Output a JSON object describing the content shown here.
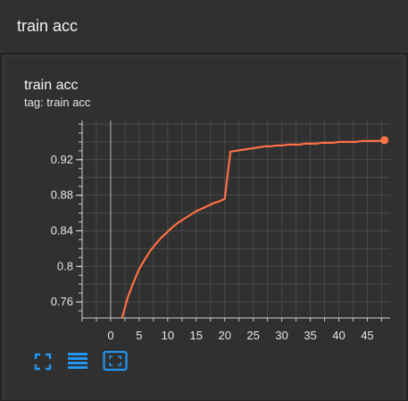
{
  "header": {
    "title": "train acc"
  },
  "card": {
    "title": "train acc",
    "tag": "tag: train acc"
  },
  "toolbar": {
    "icons": [
      "fullscreen-icon",
      "data-table-icon",
      "fit-domain-icon"
    ],
    "accent": "#2196f3"
  },
  "chart_data": {
    "type": "line",
    "title": "train acc",
    "xlabel": "",
    "ylabel": "",
    "grid": true,
    "xlim": [
      -5,
      49
    ],
    "ylim": [
      0.742,
      0.964
    ],
    "xticks": [
      0,
      5,
      10,
      15,
      20,
      25,
      30,
      35,
      40,
      45
    ],
    "yticks": [
      0.76,
      0.8,
      0.84,
      0.88,
      0.92
    ],
    "ytick_labels": [
      "0.76",
      "0.8",
      "0.84",
      "0.88",
      "0.92"
    ],
    "series": [
      {
        "color": "#ff7043",
        "x": [
          1,
          2,
          3,
          4,
          5,
          6,
          7,
          8,
          9,
          10,
          11,
          12,
          13,
          14,
          15,
          16,
          17,
          18,
          19,
          20,
          21,
          22,
          23,
          24,
          25,
          26,
          27,
          28,
          29,
          30,
          31,
          32,
          33,
          34,
          35,
          36,
          37,
          38,
          39,
          40,
          41,
          42,
          43,
          44,
          45,
          46,
          47,
          48
        ],
        "y": [
          0.718,
          0.742,
          0.765,
          0.782,
          0.797,
          0.808,
          0.818,
          0.826,
          0.833,
          0.839,
          0.845,
          0.85,
          0.854,
          0.858,
          0.862,
          0.865,
          0.868,
          0.871,
          0.873,
          0.876,
          0.929,
          0.93,
          0.931,
          0.932,
          0.933,
          0.934,
          0.935,
          0.935,
          0.936,
          0.936,
          0.937,
          0.937,
          0.937,
          0.938,
          0.938,
          0.938,
          0.939,
          0.939,
          0.939,
          0.94,
          0.94,
          0.94,
          0.94,
          0.941,
          0.941,
          0.941,
          0.941,
          0.942
        ]
      }
    ]
  }
}
